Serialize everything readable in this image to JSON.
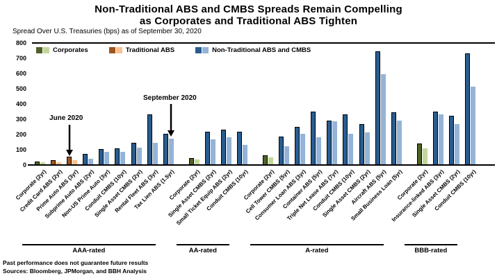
{
  "title": {
    "line1": "Non-Traditional ABS and CMBS Spreads Remain Compelling",
    "line2": "as Corporates and Traditional ABS Tighten"
  },
  "subtitle": "Spread Over U.S. Treasuries (bps) as of September 30, 2020",
  "legend": [
    {
      "key": "corporates",
      "label": "Corporates",
      "dark": "#4E6227",
      "light": "#C4D79B"
    },
    {
      "key": "traditional",
      "label": "Traditional ABS",
      "dark": "#9E5320",
      "light": "#FAC090"
    },
    {
      "key": "non_traditional",
      "label": "Non-Traditional ABS and CMBS",
      "dark": "#2A5C8F",
      "light": "#95B3D7"
    }
  ],
  "annotations": {
    "june": "June 2020",
    "september": "September 2020"
  },
  "footer": {
    "line1": "Past performance does not guarantee future results",
    "line2": "Sources: Bloomberg, JPMorgan, and BBH Analysis"
  },
  "chart_data": {
    "type": "bar",
    "title": "Non-Traditional ABS and CMBS Spreads Remain Compelling as Corporates and Traditional ABS Tighten",
    "ylabel": "Spread Over U.S. Treasuries (bps) as of September 30, 2020",
    "ylim": [
      0,
      800
    ],
    "yticks": [
      0,
      100,
      200,
      300,
      400,
      500,
      600,
      700,
      800
    ],
    "grid": false,
    "legend_position": "top-left-inside",
    "series": [
      "June 2020",
      "September 2020"
    ],
    "groups": [
      {
        "rating": "AAA-rated",
        "categories": [
          {
            "label": "Corporate (2yr)",
            "type": "corporates",
            "june": 25,
            "september": 20
          },
          {
            "label": "Credit Card ABS (2yr)",
            "type": "traditional",
            "june": 30,
            "september": 20
          },
          {
            "label": "Prime Auto ABS (3yr)",
            "type": "traditional",
            "june": 55,
            "september": 30
          },
          {
            "label": "Subprime Auto ABS (2yr)",
            "type": "non_traditional",
            "june": 75,
            "september": 40
          },
          {
            "label": "Non-US Prime Auto (3yr)",
            "type": "non_traditional",
            "june": 105,
            "september": 85
          },
          {
            "label": "Conduit CMBS (10yr)",
            "type": "non_traditional",
            "june": 110,
            "september": 85
          },
          {
            "label": "Single Asset CMBS (2yr)",
            "type": "non_traditional",
            "june": 145,
            "september": 115
          },
          {
            "label": "Rental Fleet ABS (3yr)",
            "type": "non_traditional",
            "june": 330,
            "september": 145
          },
          {
            "label": "Tax Lien ABS (1.5yr)",
            "type": "non_traditional",
            "june": 205,
            "september": 175
          }
        ]
      },
      {
        "rating": "AA-rated",
        "categories": [
          {
            "label": "Corporate (2yr)",
            "type": "corporates",
            "june": 45,
            "september": 35
          },
          {
            "label": "Single Asset CMBS (2yr)",
            "type": "non_traditional",
            "june": 220,
            "september": 170
          },
          {
            "label": "Small Ticket Equip ABS (2yr)",
            "type": "non_traditional",
            "june": 230,
            "september": 180
          },
          {
            "label": "Conduit CMBS (10yr)",
            "type": "non_traditional",
            "june": 220,
            "september": 130
          }
        ]
      },
      {
        "rating": "A-rated",
        "categories": [
          {
            "label": "Corporate (2yr)",
            "type": "corporates",
            "june": 65,
            "september": 50
          },
          {
            "label": "Cell Tower CMBS (5yr)",
            "type": "non_traditional",
            "june": 185,
            "september": 125
          },
          {
            "label": "Consumer Loan ABS (3yr)",
            "type": "non_traditional",
            "june": 250,
            "september": 205
          },
          {
            "label": "Container ABS (5yr)",
            "type": "non_traditional",
            "june": 350,
            "september": 180
          },
          {
            "label": "Triple Net Lease ABS (7yr)",
            "type": "non_traditional",
            "june": 290,
            "september": 285
          },
          {
            "label": "Conduit CMBS (10yr)",
            "type": "non_traditional",
            "june": 330,
            "september": 205
          },
          {
            "label": "Single Asset CMBS (2yr)",
            "type": "non_traditional",
            "june": 270,
            "september": 215
          },
          {
            "label": "Aircraft ABS (5yr)",
            "type": "non_traditional",
            "june": 745,
            "september": 595
          },
          {
            "label": "Small Business Loan (5yr)",
            "type": "non_traditional",
            "june": 345,
            "september": 290
          }
        ]
      },
      {
        "rating": "BBB-rated",
        "categories": [
          {
            "label": "Corporate (2yr)",
            "type": "corporates",
            "june": 140,
            "september": 110
          },
          {
            "label": "Insurance-linked ABS (3yr)",
            "type": "non_traditional",
            "june": 350,
            "september": 330
          },
          {
            "label": "Single Asset CMBS (2yr)",
            "type": "non_traditional",
            "june": 325,
            "september": 270
          },
          {
            "label": "Conduit CMBS (10yr)",
            "type": "non_traditional",
            "june": 730,
            "september": 515
          }
        ]
      }
    ]
  }
}
